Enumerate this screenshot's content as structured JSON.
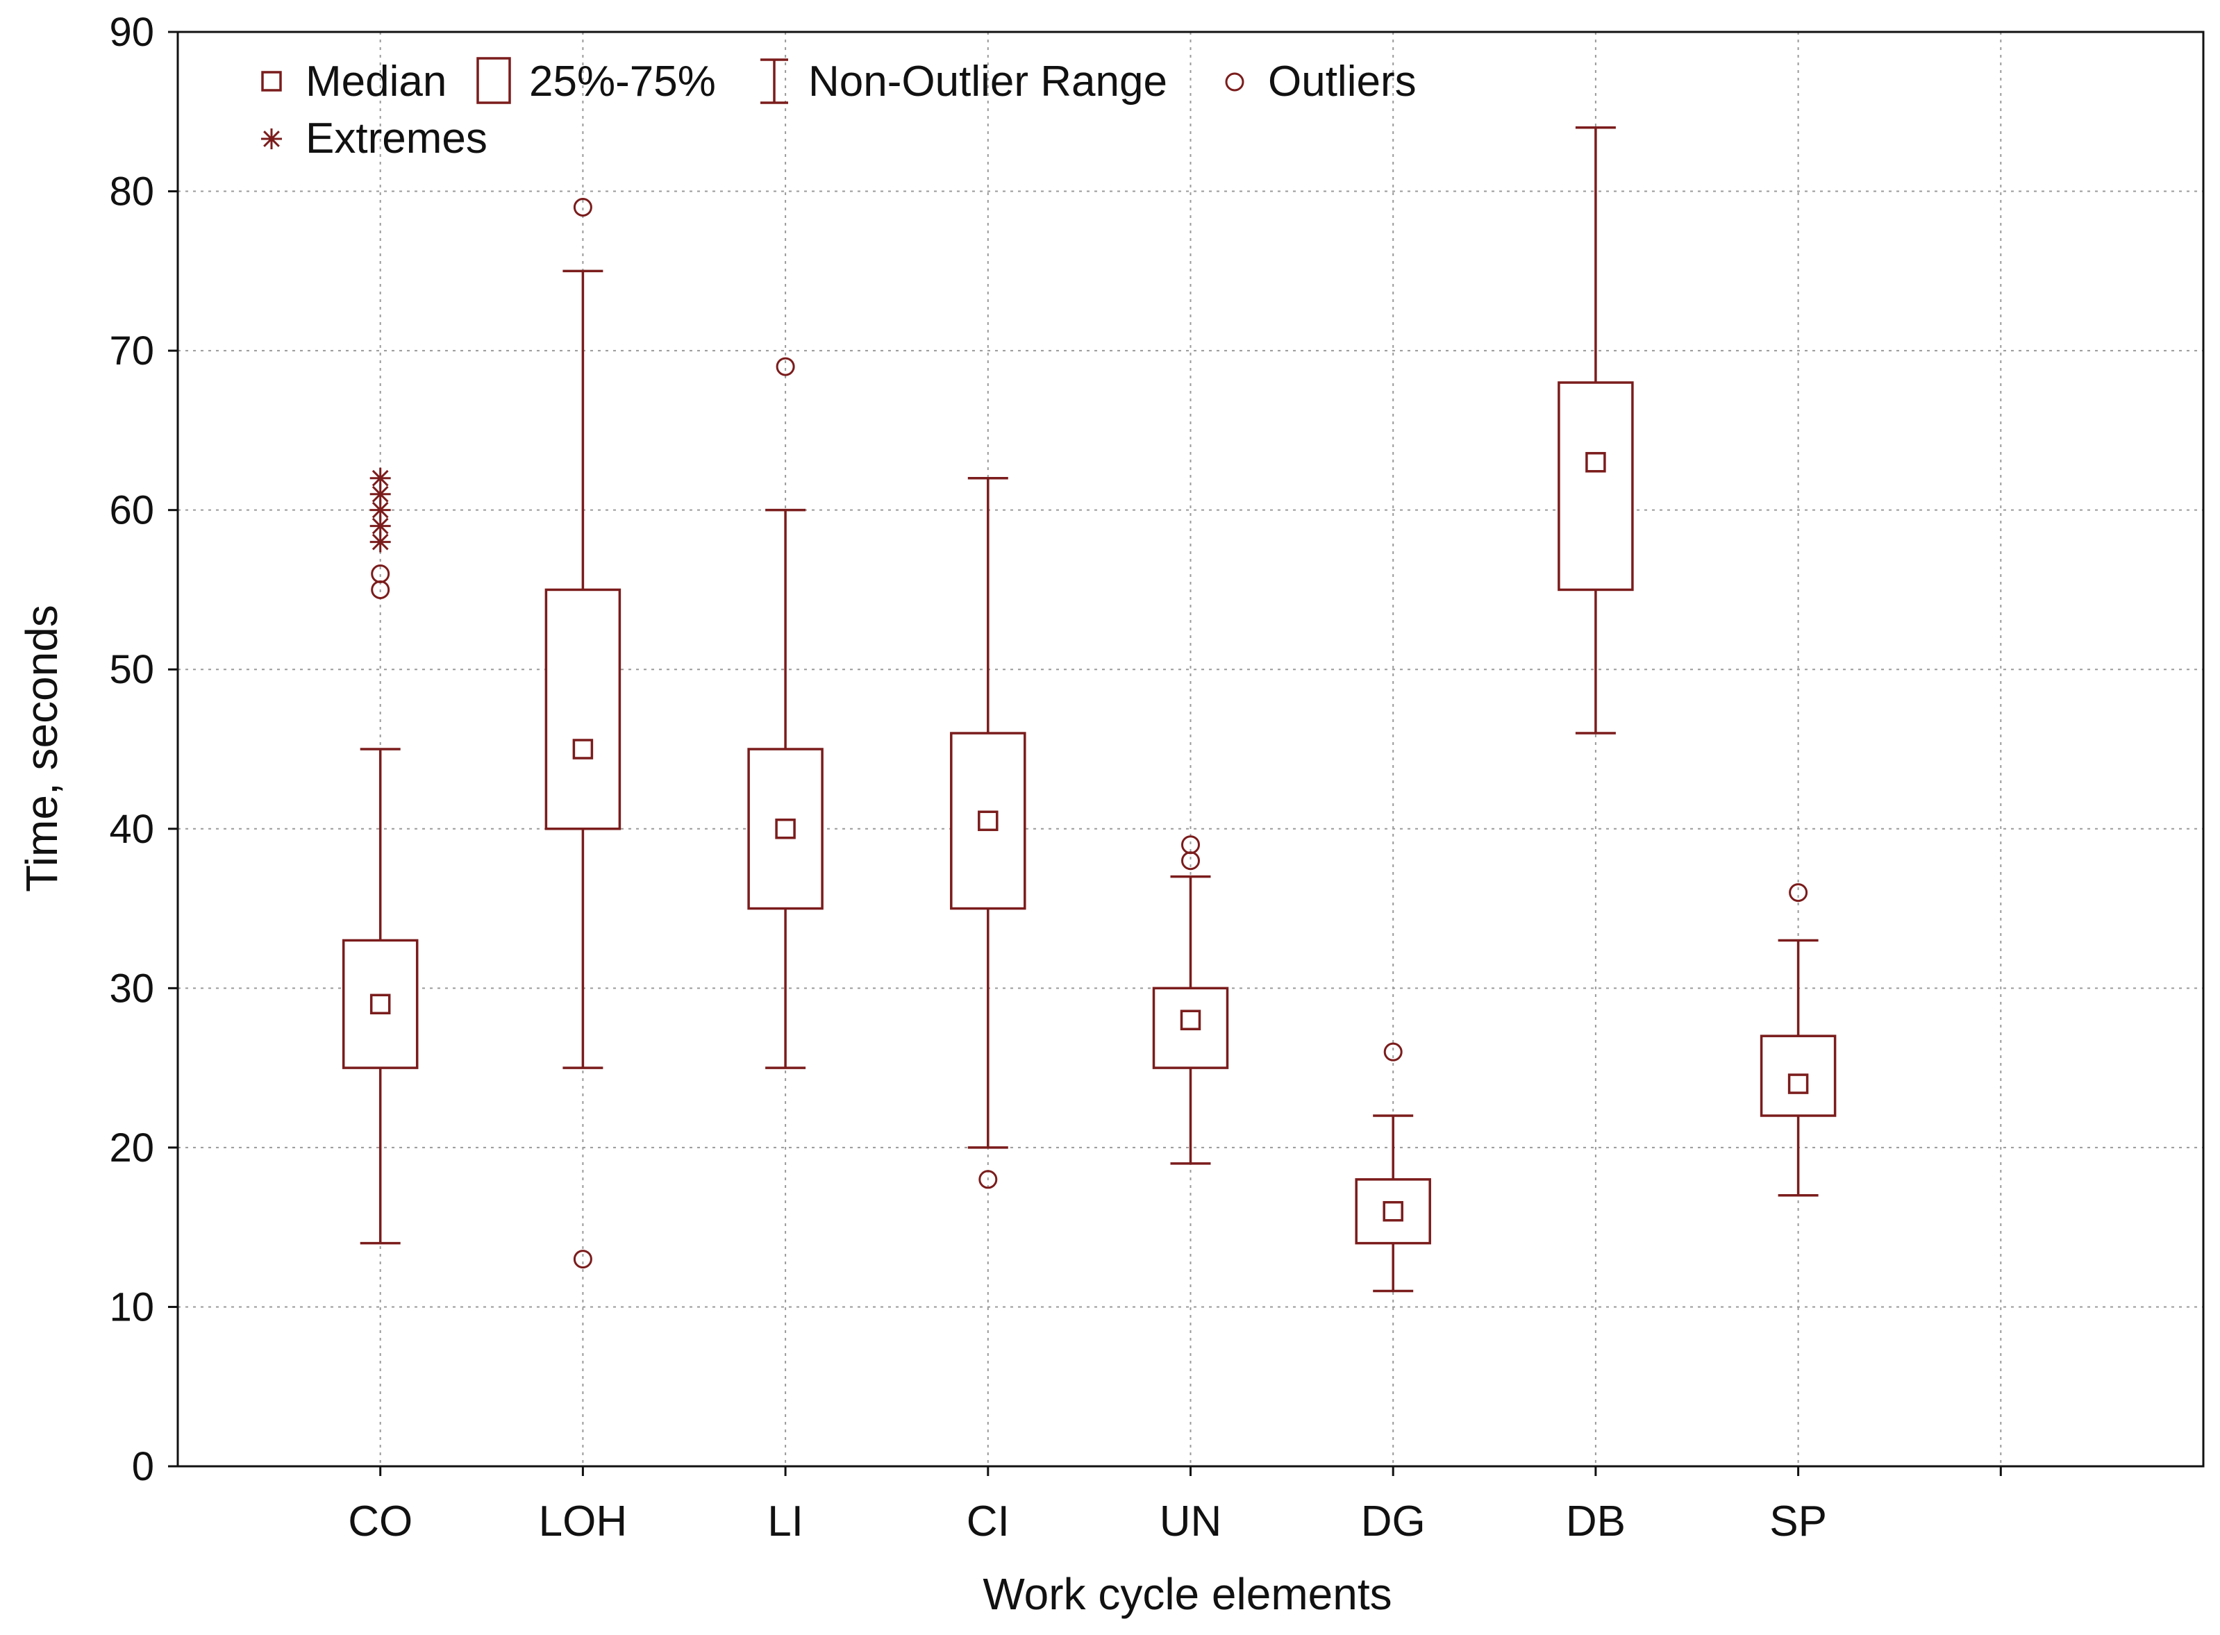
{
  "chart_data": {
    "type": "box",
    "xlabel": "Work cycle elements",
    "ylabel": "Time, seconds",
    "ylim": [
      0,
      90
    ],
    "yticks": [
      "0",
      "10",
      "20",
      "30",
      "40",
      "50",
      "60",
      "70",
      "80",
      "90"
    ],
    "grid": true,
    "color": "#7b1c1c",
    "legend": {
      "placement": "top-left",
      "items": [
        {
          "symbol": "median",
          "label": "Median"
        },
        {
          "symbol": "box",
          "label": "25%-75%"
        },
        {
          "symbol": "whisker",
          "label": "Non-Outlier Range"
        },
        {
          "symbol": "outlier",
          "label": "Outliers"
        },
        {
          "symbol": "extreme",
          "label": "Extremes"
        }
      ]
    },
    "categories": [
      "CO",
      "LOH",
      "LI",
      "CI",
      "UN",
      "DG",
      "DB",
      "SP"
    ],
    "boxes": [
      {
        "name": "CO",
        "min": 14,
        "q1": 25,
        "median": 29,
        "q3": 33,
        "max": 45,
        "outliers": [
          55,
          56
        ],
        "extremes": [
          58,
          59,
          60,
          61,
          62
        ]
      },
      {
        "name": "LOH",
        "min": 25,
        "q1": 40,
        "median": 45,
        "q3": 55,
        "max": 75,
        "outliers": [
          79,
          13
        ],
        "extremes": []
      },
      {
        "name": "LI",
        "min": 25,
        "q1": 35,
        "median": 40,
        "q3": 45,
        "max": 60,
        "outliers": [
          69
        ],
        "extremes": []
      },
      {
        "name": "CI",
        "min": 20,
        "q1": 35,
        "median": 40.5,
        "q3": 46,
        "max": 62,
        "outliers": [
          18
        ],
        "extremes": []
      },
      {
        "name": "UN",
        "min": 19,
        "q1": 25,
        "median": 28,
        "q3": 30,
        "max": 37,
        "outliers": [
          38,
          39
        ],
        "extremes": []
      },
      {
        "name": "DG",
        "min": 11,
        "q1": 14,
        "median": 16,
        "q3": 18,
        "max": 22,
        "outliers": [
          26
        ],
        "extremes": []
      },
      {
        "name": "DB",
        "min": 46,
        "q1": 55,
        "median": 63,
        "q3": 68,
        "max": 84,
        "outliers": [],
        "extremes": []
      },
      {
        "name": "SP",
        "min": 17,
        "q1": 22,
        "median": 24,
        "q3": 27,
        "max": 33,
        "outliers": [
          36
        ],
        "extremes": []
      }
    ]
  }
}
